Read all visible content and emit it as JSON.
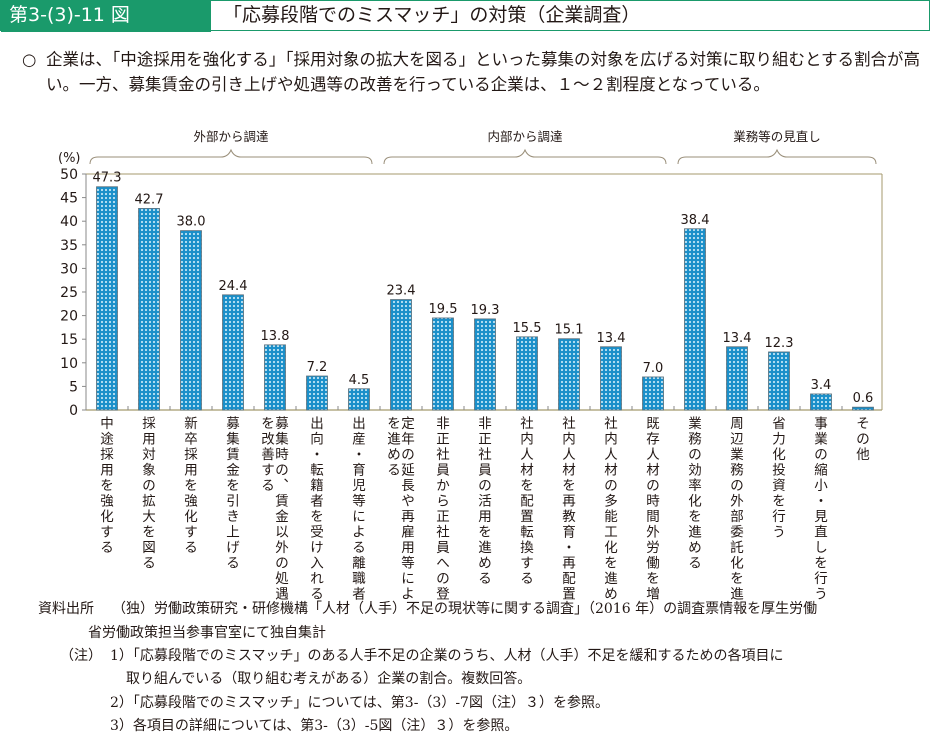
{
  "header": {
    "figure_number": "第3-(3)-11 図",
    "title": "「応募段階でのミスマッチ」の対策（企業調査）"
  },
  "summary": {
    "bullet": "○",
    "text": "企業は、「中途採用を強化する」「採用対象の拡大を図る」といった募集の対象を広げる対策に取り組むとする割合が高い。一方、募集賃金の引き上げや処遇等の改善を行っている企業は、１～２割程度となっている。"
  },
  "chart_data": {
    "type": "bar",
    "title": "「応募段階でのミスマッチ」の対策（企業調査）",
    "xlabel": "",
    "ylabel": "(%)",
    "ylim": [
      0,
      50
    ],
    "yticks": [
      0,
      5,
      10,
      15,
      20,
      25,
      30,
      35,
      40,
      45,
      50
    ],
    "grid": false,
    "legend": "none",
    "bar_color": "#1a8fc9",
    "groups": [
      {
        "label": "外部から調達",
        "start": 0,
        "end": 6
      },
      {
        "label": "内部から調達",
        "start": 7,
        "end": 13
      },
      {
        "label": "業務等の見直し",
        "start": 14,
        "end": 18
      }
    ],
    "categories": [
      "中途採用を強化する",
      "採用対象の拡大を図る",
      "新卒採用を強化する",
      "募集賃金を引き上げる",
      "募集時の、賃金以外の処遇・労働条件を改善する",
      "出向・転籍者を受け入れる",
      "出産・育児等による離職者の呼び戻し",
      "定年の延長や再雇用等による雇用延長を進める",
      "非正社員から正社員への登用を進める",
      "非正社員の活用を進める",
      "社内人材を配置転換する",
      "社内人材を再教育・再配置する",
      "社内人材の多能工化を進める",
      "既存人材の時間外労働を増加させる",
      "業務の効率化を進める",
      "周辺業務の外部委託化を進める",
      "省力化投資を行う",
      "事業の縮小・見直しを行う",
      "その他"
    ],
    "values": [
      47.3,
      42.7,
      38.0,
      24.4,
      13.8,
      7.2,
      4.5,
      23.4,
      19.5,
      19.3,
      15.5,
      15.1,
      13.4,
      7.0,
      38.4,
      13.4,
      12.3,
      3.4,
      0.6
    ],
    "value_labels": [
      "47.3",
      "42.7",
      "38.0",
      "24.4",
      "13.8",
      "7.2",
      "4.5",
      "23.4",
      "19.5",
      "19.3",
      "15.5",
      "15.1",
      "13.4",
      "7.0",
      "38.4",
      "13.4",
      "12.3",
      "3.4",
      "0.6"
    ]
  },
  "notes": {
    "source_label": "資料出所",
    "source_line1": "（独）労働政策研究・研修機構「人材（人手）不足の現状等に関する調査」（2016 年）の調査票情報を厚生労働",
    "source_line2": "省労働政策担当参事官室にて独自集計",
    "note_label": "（注）",
    "note1_line1": "1）「応募段階でのミスマッチ」のある人手不足の企業のうち、人材（人手）不足を緩和するための各項目に",
    "note1_line2": "取り組んでいる（取り組む考えがある）企業の割合。複数回答。",
    "note2": "2）「応募段階でのミスマッチ」については、第3-（3）-7図（注）３）を参照。",
    "note3": "3）各項目の詳細については、第3-（3）-5図（注）３）を参照。"
  }
}
